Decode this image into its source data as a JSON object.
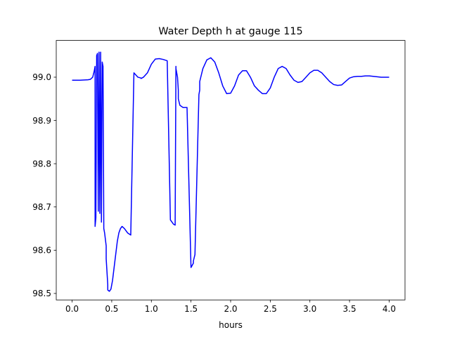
{
  "chart_data": {
    "type": "line",
    "title": "Water Depth h at gauge 115",
    "xlabel": "hours",
    "ylabel": "",
    "xlim": [
      -0.2,
      4.2
    ],
    "ylim": [
      98.485,
      99.085
    ],
    "x_ticks": [
      0.0,
      0.5,
      1.0,
      1.5,
      2.0,
      2.5,
      3.0,
      3.5,
      4.0
    ],
    "x_tick_labels": [
      "0.0",
      "0.5",
      "1.0",
      "1.5",
      "2.0",
      "2.5",
      "3.0",
      "3.5",
      "4.0"
    ],
    "y_ticks": [
      98.5,
      98.6,
      98.7,
      98.8,
      98.9,
      99.0
    ],
    "y_tick_labels": [
      "98.5",
      "98.6",
      "98.7",
      "98.8",
      "98.9",
      "99.0"
    ],
    "grid": false,
    "legend": "none",
    "series": [
      {
        "color": "#0000ff",
        "x": [
          0.0,
          0.1,
          0.2,
          0.23,
          0.26,
          0.28,
          0.29,
          0.29,
          0.3,
          0.31,
          0.32,
          0.33,
          0.34,
          0.35,
          0.36,
          0.37,
          0.37,
          0.38,
          0.39,
          0.4,
          0.41,
          0.43,
          0.43,
          0.44,
          0.45,
          0.45,
          0.47,
          0.49,
          0.51,
          0.53,
          0.55,
          0.57,
          0.59,
          0.61,
          0.63,
          0.66,
          0.7,
          0.74,
          0.78,
          0.8,
          0.83,
          0.87,
          0.87,
          0.9,
          0.95,
          1.0,
          1.05,
          1.1,
          1.15,
          1.2,
          1.24,
          1.28,
          1.3,
          1.31,
          1.31,
          1.33,
          1.34,
          1.34,
          1.36,
          1.4,
          1.45,
          1.5,
          1.53,
          1.53,
          1.55,
          1.6,
          1.61,
          1.61,
          1.65,
          1.7,
          1.75,
          1.8,
          1.85,
          1.9,
          1.95,
          2.0,
          2.05,
          2.1,
          2.15,
          2.2,
          2.25,
          2.3,
          2.35,
          2.4,
          2.45,
          2.5,
          2.55,
          2.6,
          2.65,
          2.7,
          2.75,
          2.8,
          2.85,
          2.9,
          2.95,
          3.0,
          3.05,
          3.1,
          3.15,
          3.2,
          3.25,
          3.3,
          3.35,
          3.4,
          3.45,
          3.5,
          3.55,
          3.6,
          3.65,
          3.7,
          3.75,
          3.8,
          3.85,
          3.9,
          3.95,
          4.0
        ],
        "y": [
          98.993,
          98.993,
          98.994,
          98.995,
          99.0,
          99.015,
          99.025,
          98.655,
          98.675,
          99.05,
          99.055,
          98.69,
          99.058,
          98.685,
          99.058,
          98.67,
          98.665,
          99.035,
          99.025,
          98.65,
          98.64,
          98.61,
          98.58,
          98.55,
          98.52,
          98.508,
          98.505,
          98.51,
          98.53,
          98.56,
          98.59,
          98.62,
          98.64,
          98.65,
          98.655,
          98.65,
          98.64,
          98.635,
          99.01,
          99.006,
          99.0,
          98.998,
          98.997,
          99.0,
          99.01,
          99.03,
          99.042,
          99.043,
          99.041,
          99.038,
          98.67,
          98.66,
          98.658,
          99.025,
          99.02,
          99.0,
          98.97,
          98.95,
          98.935,
          98.93,
          98.93,
          98.56,
          98.57,
          98.575,
          98.59,
          98.96,
          98.97,
          98.99,
          99.02,
          99.04,
          99.045,
          99.035,
          99.01,
          98.98,
          98.962,
          98.963,
          98.98,
          99.005,
          99.015,
          99.015,
          99.0,
          98.98,
          98.97,
          98.962,
          98.962,
          98.975,
          99.0,
          99.02,
          99.025,
          99.02,
          99.005,
          98.993,
          98.988,
          98.99,
          99.0,
          99.01,
          99.016,
          99.016,
          99.01,
          99.0,
          98.99,
          98.983,
          98.981,
          98.982,
          98.99,
          98.998,
          99.001,
          99.002,
          99.002,
          99.003,
          99.003,
          99.002,
          99.001,
          99.0,
          99.0,
          99.0
        ]
      }
    ]
  }
}
